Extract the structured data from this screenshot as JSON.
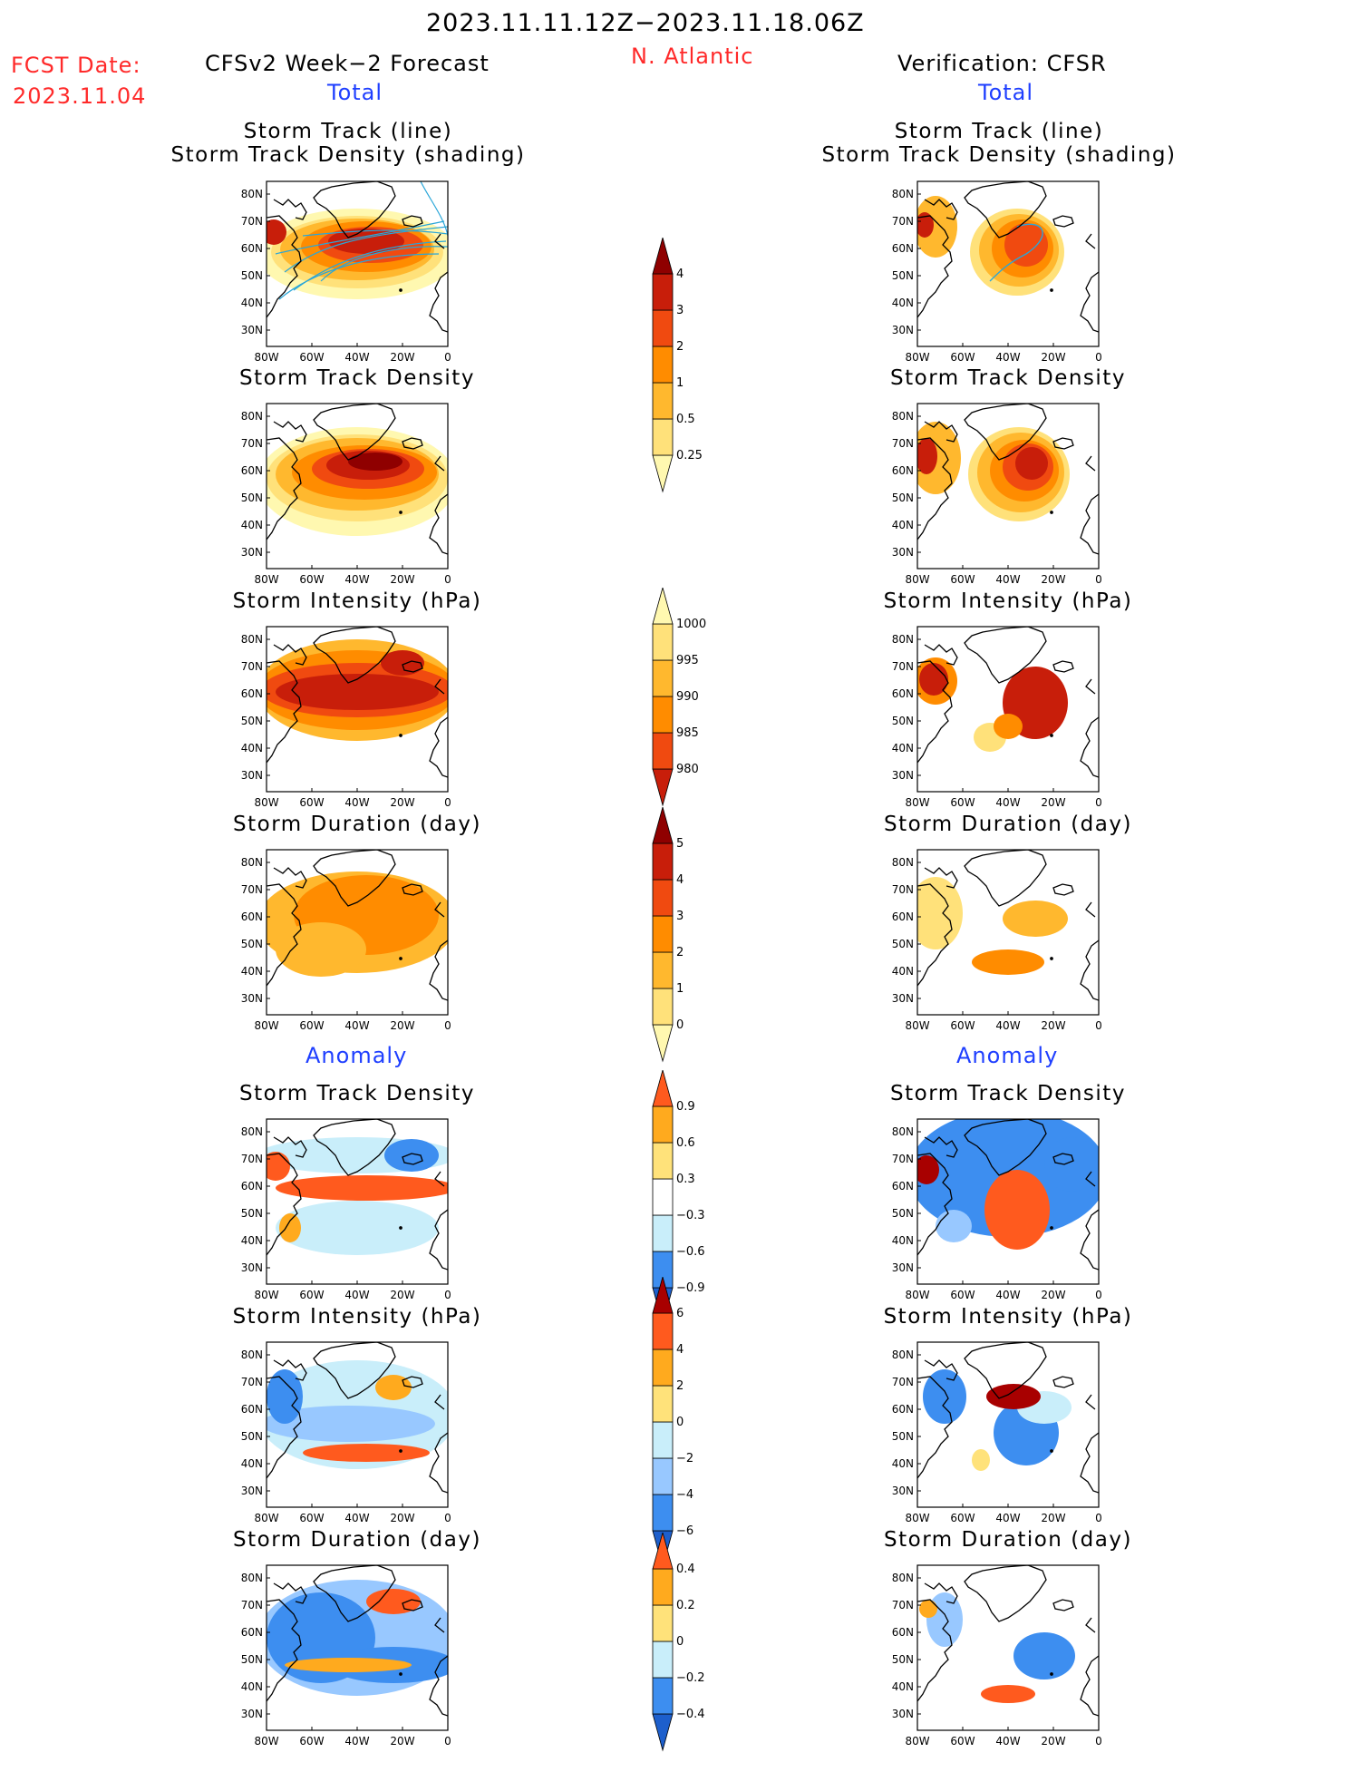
{
  "header": {
    "date_range": "2023.11.11.12Z−2023.11.18.06Z",
    "region": "N. Atlantic",
    "fcst_label": "FCST Date:",
    "fcst_date": "2023.11.04",
    "left_model": "CFSv2 Week−2 Forecast",
    "right_model": "Verification: CFSR",
    "left_total": "Total",
    "right_total": "Total",
    "left_anomaly": "Anomaly",
    "right_anomaly": "Anomaly"
  },
  "panel_titles": {
    "track_line": "Storm Track (line)",
    "track_shading": "Storm Track Density (shading)",
    "density": "Storm Track Density",
    "intensity": "Storm Intensity (hPa)",
    "duration": "Storm Duration (day)"
  },
  "axes": {
    "lat_ticks": [
      "80N",
      "70N",
      "60N",
      "50N",
      "40N",
      "30N"
    ],
    "lon_ticks": [
      "80W",
      "60W",
      "40W",
      "20W",
      "0"
    ]
  },
  "colors": {
    "c1": "#fff8b0",
    "c2": "#ffe17a",
    "c3": "#ffb82e",
    "c4": "#ff8c00",
    "c5": "#f04a10",
    "c6": "#c81e0a",
    "c7": "#8f0000",
    "a_neg1": "#c9eefa",
    "a_neg2": "#98c8ff",
    "a_neg3": "#3d8ef0",
    "a_neg4": "#1d5fcc",
    "a_pos1": "#ffe27a",
    "a_pos2": "#ffaa1e",
    "a_pos3": "#ff5a1e",
    "a_pos4": "#a80000",
    "track_line": "#2aa6d8"
  },
  "colorbars": {
    "density_total": [
      "0.25",
      "0.5",
      "1",
      "2",
      "3",
      "4"
    ],
    "intensity_total": [
      "1000",
      "995",
      "990",
      "985",
      "980"
    ],
    "duration_total": [
      "0",
      "1",
      "2",
      "3",
      "4",
      "5"
    ],
    "density_anom": [
      "0.9",
      "0.6",
      "0.3",
      "−0.3",
      "−0.6",
      "−0.9"
    ],
    "intensity_anom": [
      "6",
      "4",
      "2",
      "0",
      "−2",
      "−4",
      "−6"
    ],
    "duration_anom": [
      "0.4",
      "0.2",
      "0",
      "−0.2",
      "−0.4"
    ]
  }
}
